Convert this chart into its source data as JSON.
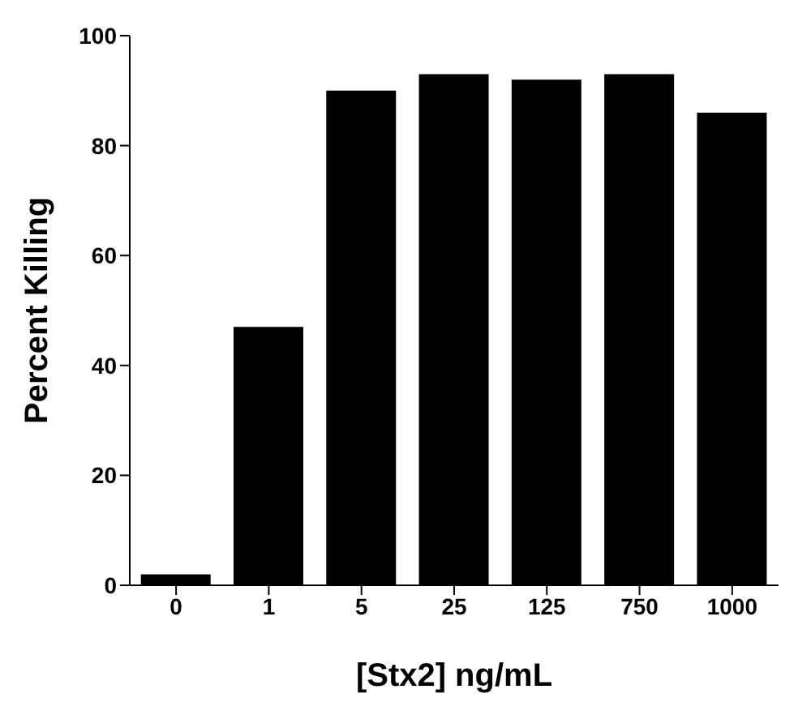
{
  "chart_data": {
    "type": "bar",
    "xlabel": "[Stx2] ng/mL",
    "ylabel": "Percent Killing",
    "categories": [
      "0",
      "1",
      "5",
      "25",
      "125",
      "750",
      "1000"
    ],
    "values": [
      2,
      47,
      90,
      93,
      92,
      93,
      86
    ],
    "color": "#000000",
    "ylim": [
      0,
      100
    ],
    "yticks": [
      0,
      20,
      40,
      60,
      80,
      100
    ],
    "grid": false
  }
}
